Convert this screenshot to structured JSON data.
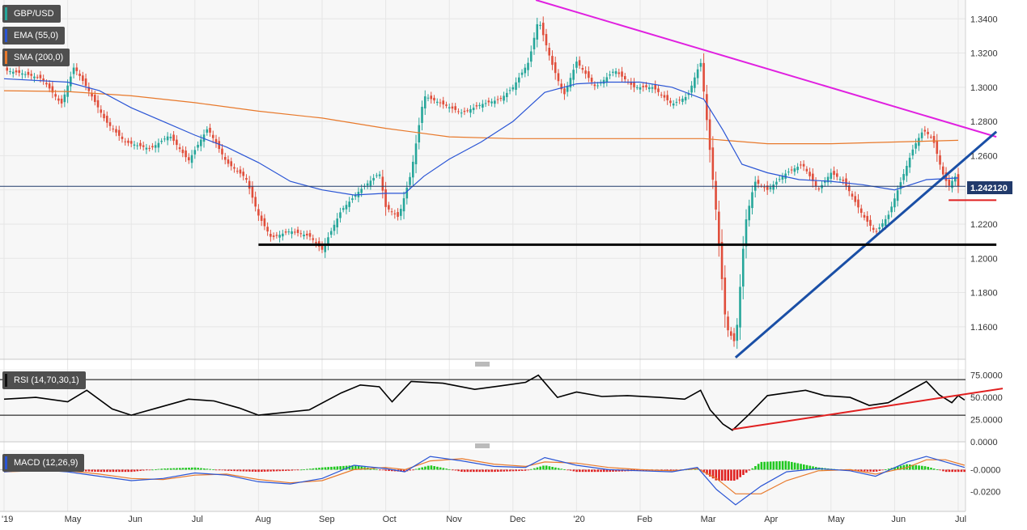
{
  "legend": {
    "symbol": "GBP/USD",
    "ema": "EMA (55,0)",
    "sma": "SMA (200,0)",
    "rsi": "RSI (14,70,30,1)",
    "macd": "MACD (12,26,9)"
  },
  "current_price_label": "1.242120",
  "colors": {
    "up": "#26a69a",
    "down": "#e04e3b",
    "ema": "#2a55d5",
    "sma": "#e8792b",
    "resistance": "#e020e0",
    "trend_support": "#1a4fa6",
    "horizontal_support": "#000000",
    "rsi_trend": "#e02020",
    "macd_pos": "#1ec81e",
    "macd_neg": "#e02020"
  },
  "chart_data": [
    {
      "type": "candlestick",
      "title": "GBP/USD",
      "x_ticks": [
        "'19",
        "May",
        "Jun",
        "Jul",
        "Aug",
        "Sep",
        "Oct",
        "Nov",
        "Dec",
        "'20",
        "Feb",
        "Mar",
        "Apr",
        "May",
        "Jun",
        "Jul"
      ],
      "y_ticks": [
        "1.3400",
        "1.3200",
        "1.3000",
        "1.2800",
        "1.2600",
        "1.2400",
        "1.2200",
        "1.2000",
        "1.1800",
        "1.1600"
      ],
      "ylim": [
        1.141,
        1.351
      ],
      "last_price": 1.24212,
      "x_months_float": [
        0,
        1,
        2,
        3,
        4,
        5,
        6,
        7,
        8,
        9,
        10,
        11,
        12,
        13,
        14,
        15
      ],
      "price_path": [
        [
          0,
          1.31
        ],
        [
          0.3,
          1.308
        ],
        [
          0.6,
          1.305
        ],
        [
          0.9,
          1.29
        ],
        [
          1.1,
          1.312
        ],
        [
          1.3,
          1.3
        ],
        [
          1.6,
          1.28
        ],
        [
          1.9,
          1.268
        ],
        [
          2.3,
          1.264
        ],
        [
          2.6,
          1.272
        ],
        [
          2.9,
          1.257
        ],
        [
          3.2,
          1.276
        ],
        [
          3.5,
          1.256
        ],
        [
          3.8,
          1.247
        ],
        [
          4.0,
          1.225
        ],
        [
          4.2,
          1.212
        ],
        [
          4.5,
          1.216
        ],
        [
          4.8,
          1.213
        ],
        [
          5.0,
          1.205
        ],
        [
          5.3,
          1.228
        ],
        [
          5.6,
          1.24
        ],
        [
          5.9,
          1.25
        ],
        [
          6.0,
          1.23
        ],
        [
          6.2,
          1.224
        ],
        [
          6.4,
          1.25
        ],
        [
          6.6,
          1.295
        ],
        [
          6.9,
          1.29
        ],
        [
          7.2,
          1.285
        ],
        [
          7.5,
          1.29
        ],
        [
          7.8,
          1.293
        ],
        [
          8.0,
          1.3
        ],
        [
          8.25,
          1.315
        ],
        [
          8.4,
          1.34
        ],
        [
          8.6,
          1.315
        ],
        [
          8.8,
          1.295
        ],
        [
          9.0,
          1.315
        ],
        [
          9.3,
          1.3
        ],
        [
          9.6,
          1.31
        ],
        [
          9.9,
          1.3
        ],
        [
          10.2,
          1.3
        ],
        [
          10.5,
          1.29
        ],
        [
          10.75,
          1.295
        ],
        [
          10.95,
          1.315
        ],
        [
          11.05,
          1.28
        ],
        [
          11.2,
          1.225
        ],
        [
          11.35,
          1.16
        ],
        [
          11.5,
          1.15
        ],
        [
          11.65,
          1.22
        ],
        [
          11.8,
          1.245
        ],
        [
          12.0,
          1.24
        ],
        [
          12.3,
          1.25
        ],
        [
          12.55,
          1.255
        ],
        [
          12.8,
          1.24
        ],
        [
          13.0,
          1.25
        ],
        [
          13.2,
          1.245
        ],
        [
          13.5,
          1.225
        ],
        [
          13.7,
          1.215
        ],
        [
          13.9,
          1.225
        ],
        [
          14.1,
          1.245
        ],
        [
          14.3,
          1.265
        ],
        [
          14.45,
          1.275
        ],
        [
          14.6,
          1.27
        ],
        [
          14.75,
          1.25
        ],
        [
          14.85,
          1.242
        ],
        [
          14.95,
          1.248
        ],
        [
          15.0,
          1.2421
        ]
      ],
      "ema55_path": [
        [
          0,
          1.305
        ],
        [
          1,
          1.303
        ],
        [
          1.5,
          1.298
        ],
        [
          2,
          1.288
        ],
        [
          2.5,
          1.28
        ],
        [
          3,
          1.272
        ],
        [
          3.5,
          1.265
        ],
        [
          4,
          1.256
        ],
        [
          4.5,
          1.245
        ],
        [
          5,
          1.24
        ],
        [
          5.5,
          1.237
        ],
        [
          6,
          1.238
        ],
        [
          6.3,
          1.238
        ],
        [
          6.6,
          1.248
        ],
        [
          7,
          1.258
        ],
        [
          7.5,
          1.268
        ],
        [
          8,
          1.28
        ],
        [
          8.5,
          1.297
        ],
        [
          9,
          1.302
        ],
        [
          9.5,
          1.303
        ],
        [
          10,
          1.303
        ],
        [
          10.5,
          1.3
        ],
        [
          11,
          1.293
        ],
        [
          11.3,
          1.275
        ],
        [
          11.6,
          1.255
        ],
        [
          12,
          1.25
        ],
        [
          12.5,
          1.246
        ],
        [
          13,
          1.245
        ],
        [
          13.5,
          1.243
        ],
        [
          14,
          1.24
        ],
        [
          14.5,
          1.246
        ],
        [
          15,
          1.247
        ]
      ],
      "sma200_path": [
        [
          0,
          1.298
        ],
        [
          1,
          1.2975
        ],
        [
          2,
          1.295
        ],
        [
          3,
          1.291
        ],
        [
          4,
          1.286
        ],
        [
          5,
          1.282
        ],
        [
          6,
          1.276
        ],
        [
          7,
          1.271
        ],
        [
          8,
          1.27
        ],
        [
          9,
          1.27
        ],
        [
          10,
          1.27
        ],
        [
          11,
          1.27
        ],
        [
          12,
          1.267
        ],
        [
          13,
          1.267
        ],
        [
          14,
          1.268
        ],
        [
          15,
          1.269
        ]
      ],
      "annotations": {
        "resistance_line": [
          [
            8.36,
            1.351
          ],
          [
            15.6,
            1.271
          ]
        ],
        "trend_support_line": [
          [
            11.5,
            1.142
          ],
          [
            15.6,
            1.274
          ]
        ],
        "horizontal_support": {
          "from": 4.0,
          "to": 15.6,
          "y": 1.208
        },
        "short_red_level": {
          "from": 14.85,
          "to": 15.6,
          "y": 1.234
        }
      }
    },
    {
      "type": "line",
      "title": "RSI (14,70,30,1)",
      "y_ticks": [
        "75.0000",
        "50.0000",
        "25.0000",
        "0.0000"
      ],
      "ylim": [
        0,
        82
      ],
      "levels": [
        70,
        30
      ],
      "rsi_path": [
        [
          0,
          48
        ],
        [
          0.5,
          50
        ],
        [
          1.0,
          45
        ],
        [
          1.3,
          58
        ],
        [
          1.7,
          37
        ],
        [
          2.0,
          30
        ],
        [
          2.4,
          38
        ],
        [
          2.9,
          48
        ],
        [
          3.3,
          46
        ],
        [
          3.7,
          38
        ],
        [
          4.0,
          30
        ],
        [
          4.4,
          33
        ],
        [
          4.8,
          36
        ],
        [
          5.3,
          55
        ],
        [
          5.6,
          64
        ],
        [
          5.9,
          62
        ],
        [
          6.1,
          45
        ],
        [
          6.4,
          68
        ],
        [
          6.9,
          66
        ],
        [
          7.4,
          59
        ],
        [
          7.8,
          63
        ],
        [
          8.2,
          67
        ],
        [
          8.4,
          75
        ],
        [
          8.7,
          50
        ],
        [
          9.0,
          56
        ],
        [
          9.4,
          51
        ],
        [
          9.8,
          52
        ],
        [
          10.3,
          50
        ],
        [
          10.7,
          48
        ],
        [
          10.95,
          58
        ],
        [
          11.1,
          36
        ],
        [
          11.3,
          20
        ],
        [
          11.45,
          13
        ],
        [
          11.7,
          30
        ],
        [
          12.0,
          52
        ],
        [
          12.3,
          55
        ],
        [
          12.6,
          58
        ],
        [
          12.9,
          52
        ],
        [
          13.3,
          50
        ],
        [
          13.6,
          41
        ],
        [
          13.9,
          44
        ],
        [
          14.2,
          56
        ],
        [
          14.5,
          68
        ],
        [
          14.7,
          53
        ],
        [
          14.9,
          44
        ],
        [
          15.0,
          52
        ],
        [
          15.1,
          47
        ]
      ],
      "trend_line": [
        [
          11.45,
          14
        ],
        [
          15.7,
          60
        ]
      ]
    },
    {
      "type": "bar",
      "title": "MACD (12,26,9)",
      "y_ticks": [
        "-0.0000",
        "-0.0200"
      ],
      "ylim": [
        -0.038,
        0.018
      ],
      "macd_path": [
        [
          0,
          -0.002
        ],
        [
          0.5,
          0.0
        ],
        [
          1.0,
          -0.002
        ],
        [
          1.5,
          -0.006
        ],
        [
          2.0,
          -0.01
        ],
        [
          2.5,
          -0.008
        ],
        [
          3.0,
          -0.003
        ],
        [
          3.5,
          -0.005
        ],
        [
          4.0,
          -0.011
        ],
        [
          4.5,
          -0.013
        ],
        [
          5.0,
          -0.008
        ],
        [
          5.5,
          0.004
        ],
        [
          6.0,
          0.001
        ],
        [
          6.3,
          -0.002
        ],
        [
          6.7,
          0.012
        ],
        [
          7.2,
          0.008
        ],
        [
          7.7,
          0.003
        ],
        [
          8.2,
          0.002
        ],
        [
          8.5,
          0.011
        ],
        [
          9.0,
          0.004
        ],
        [
          9.5,
          0.0
        ],
        [
          10.0,
          -0.001
        ],
        [
          10.5,
          -0.002
        ],
        [
          10.9,
          0.002
        ],
        [
          11.2,
          -0.018
        ],
        [
          11.5,
          -0.032
        ],
        [
          11.9,
          -0.015
        ],
        [
          12.3,
          -0.002
        ],
        [
          12.8,
          0.001
        ],
        [
          13.3,
          -0.001
        ],
        [
          13.7,
          -0.006
        ],
        [
          14.2,
          0.007
        ],
        [
          14.5,
          0.012
        ],
        [
          14.8,
          0.007
        ],
        [
          15.1,
          0.002
        ]
      ],
      "signal_path": [
        [
          0,
          -0.002
        ],
        [
          0.5,
          -0.001
        ],
        [
          1.0,
          -0.001
        ],
        [
          1.5,
          -0.004
        ],
        [
          2.0,
          -0.008
        ],
        [
          2.5,
          -0.009
        ],
        [
          3.0,
          -0.005
        ],
        [
          3.5,
          -0.004
        ],
        [
          4.0,
          -0.009
        ],
        [
          4.5,
          -0.012
        ],
        [
          5.0,
          -0.01
        ],
        [
          5.5,
          0.0
        ],
        [
          6.0,
          0.002
        ],
        [
          6.3,
          0.0
        ],
        [
          6.7,
          0.008
        ],
        [
          7.2,
          0.01
        ],
        [
          7.7,
          0.005
        ],
        [
          8.2,
          0.003
        ],
        [
          8.5,
          0.007
        ],
        [
          9.0,
          0.006
        ],
        [
          9.5,
          0.002
        ],
        [
          10.0,
          0.0
        ],
        [
          10.5,
          -0.001
        ],
        [
          10.9,
          0.001
        ],
        [
          11.2,
          -0.008
        ],
        [
          11.5,
          -0.022
        ],
        [
          11.9,
          -0.022
        ],
        [
          12.3,
          -0.01
        ],
        [
          12.8,
          -0.001
        ],
        [
          13.3,
          0.0
        ],
        [
          13.7,
          -0.004
        ],
        [
          14.2,
          0.002
        ],
        [
          14.5,
          0.009
        ],
        [
          14.8,
          0.009
        ],
        [
          15.1,
          0.004
        ]
      ]
    }
  ]
}
